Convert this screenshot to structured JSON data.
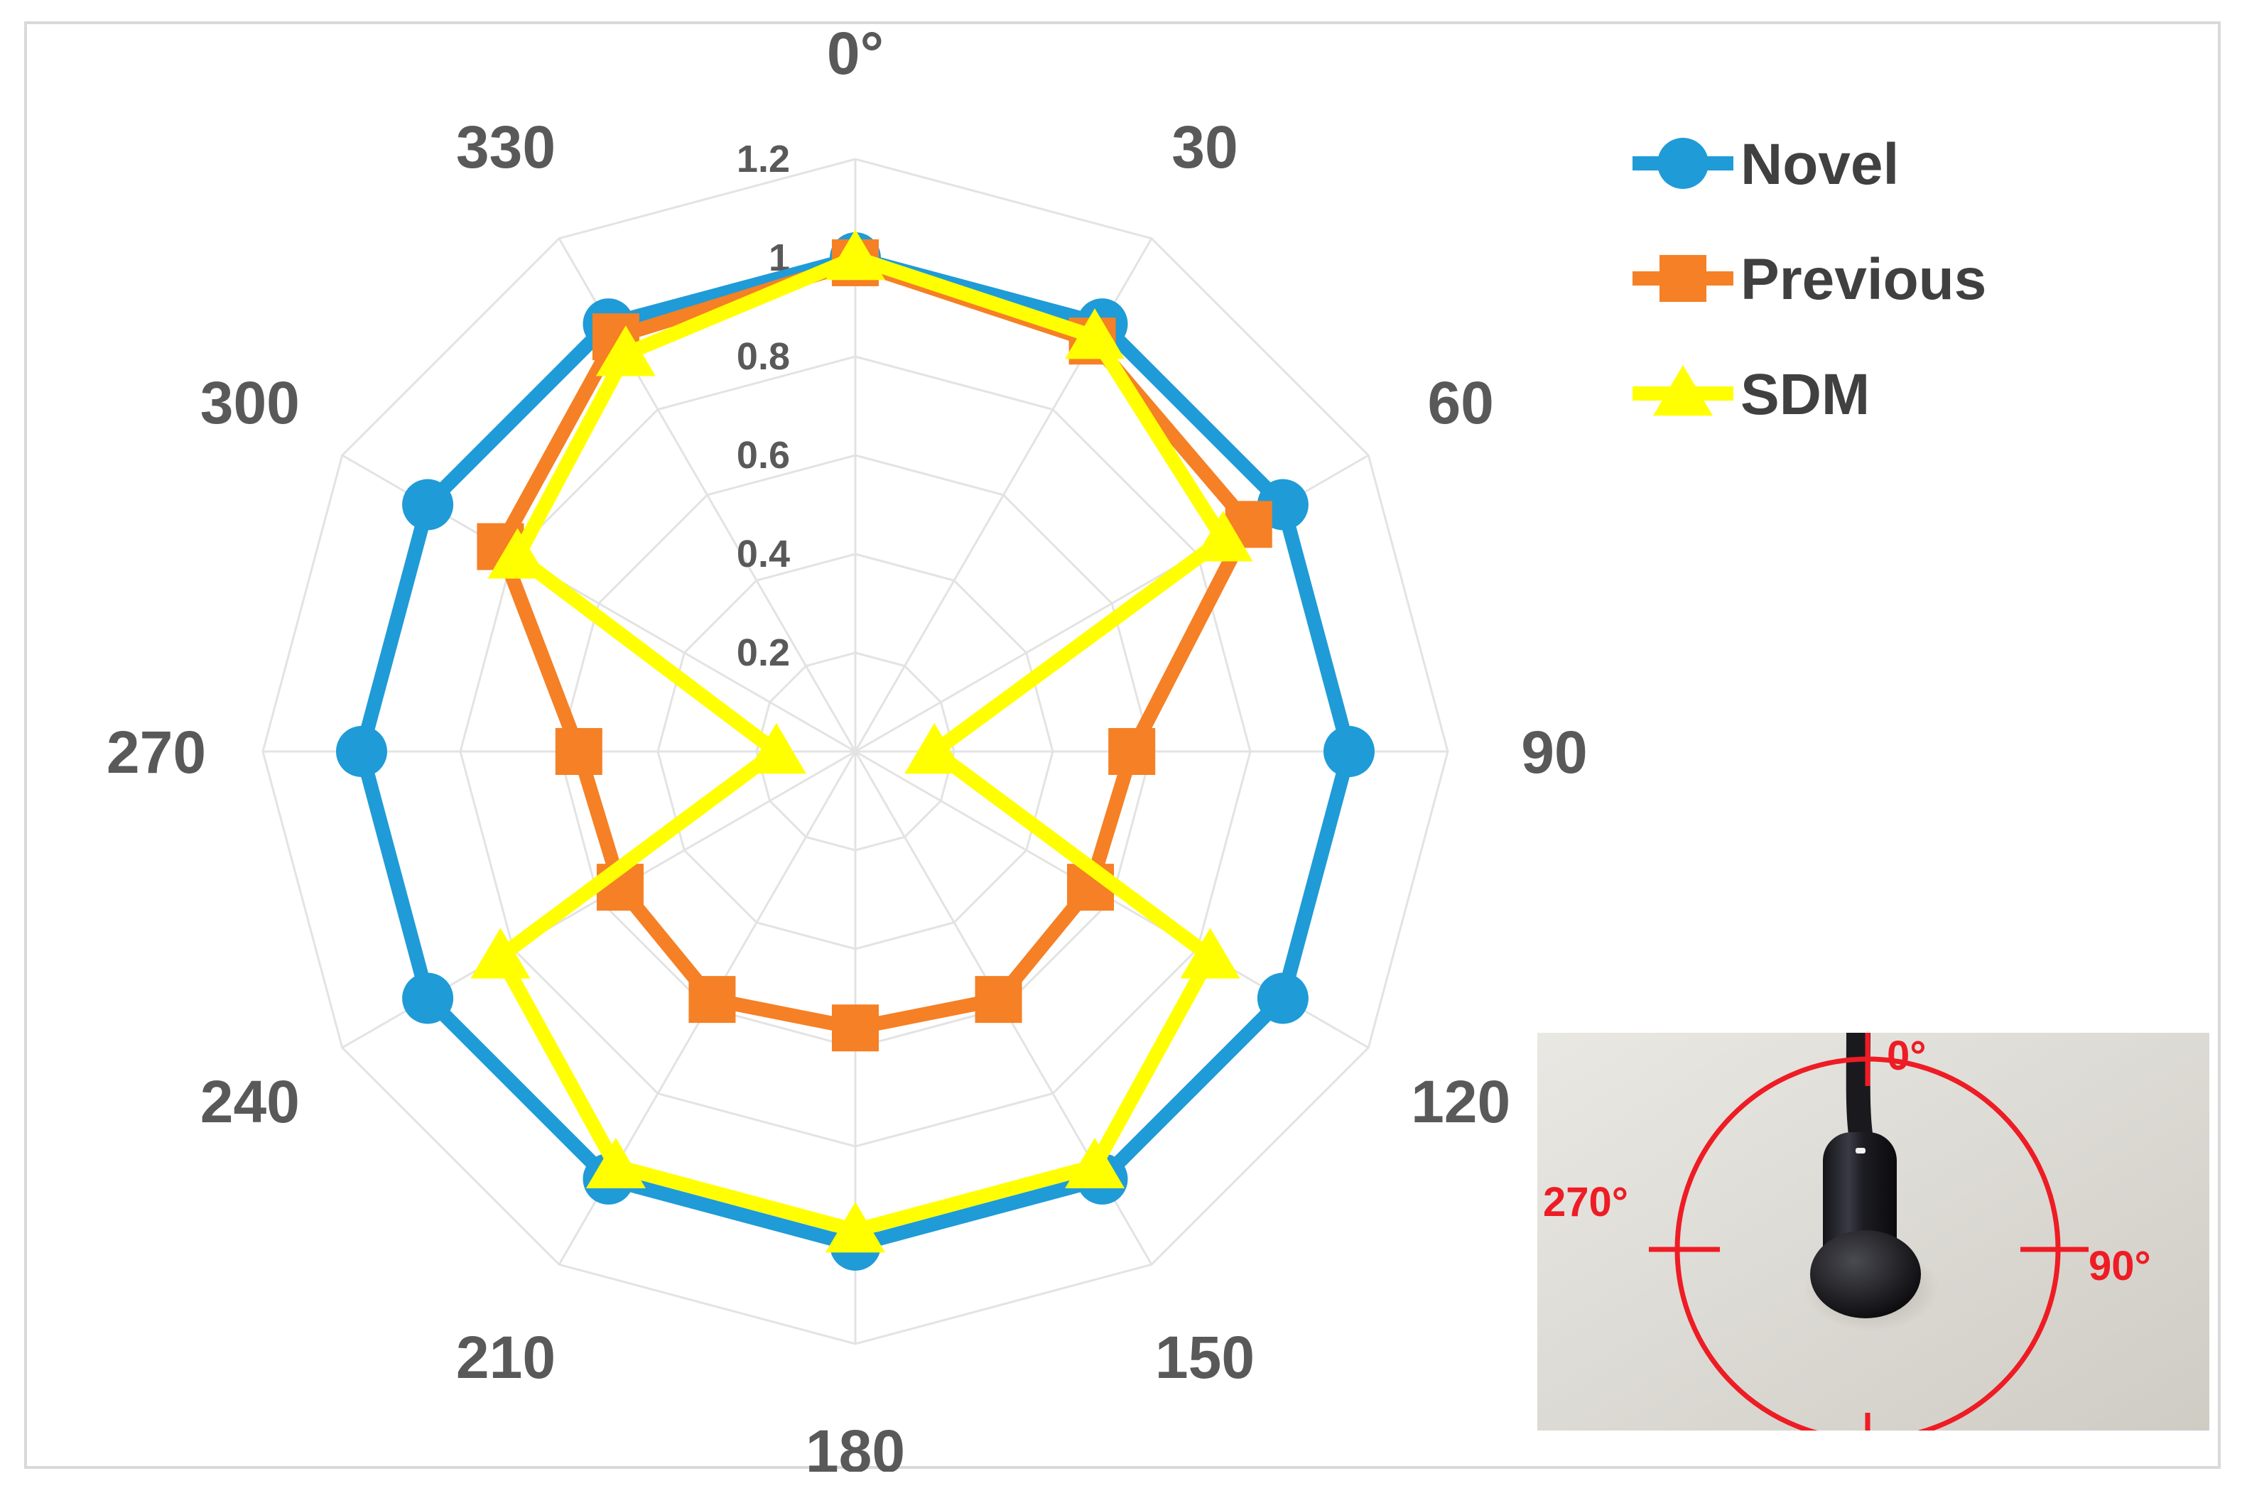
{
  "chart_data": {
    "type": "radar",
    "categories": [
      "0°",
      "30",
      "60",
      "90",
      "120",
      "150",
      "180",
      "210",
      "240",
      "270",
      "300",
      "330"
    ],
    "rlim": [
      0,
      1.2
    ],
    "radial_ticks": [
      "0",
      "0.2",
      "0.4",
      "0.6",
      "0.8",
      "1",
      "1.2"
    ],
    "radial_tick_values": [
      0,
      0.2,
      0.4,
      0.6,
      0.8,
      1,
      1.2
    ],
    "grid": true,
    "legend_position": "top-right",
    "series": [
      {
        "name": "Novel",
        "color": "#1f9bd7",
        "marker": "circle",
        "values": [
          1.0,
          1.0,
          1.0,
          1.0,
          1.0,
          1.0,
          1.0,
          1.0,
          1.0,
          1.0,
          1.0,
          1.0
        ]
      },
      {
        "name": "Previous",
        "color": "#f58025",
        "marker": "square",
        "values": [
          0.99,
          0.96,
          0.92,
          0.56,
          0.55,
          0.58,
          0.56,
          0.58,
          0.55,
          0.56,
          0.83,
          0.97
        ]
      },
      {
        "name": "SDM",
        "color": "#ffff00",
        "marker": "triangle",
        "values": [
          1.0,
          0.97,
          0.86,
          0.16,
          0.83,
          0.97,
          0.97,
          0.97,
          0.83,
          0.16,
          0.79,
          0.93
        ]
      }
    ]
  },
  "inset": {
    "labels": [
      "0°",
      "90°",
      "270°"
    ],
    "accent_color": "#ee1c24"
  }
}
